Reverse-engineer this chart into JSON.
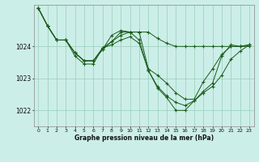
{
  "bg_color": "#cceee8",
  "grid_color": "#99ccbb",
  "line_color": "#1a5c1a",
  "xlabel": "Graphe pression niveau de la mer (hPa)",
  "xlim_min": -0.5,
  "xlim_max": 23.5,
  "ylim_min": 1021.5,
  "ylim_max": 1025.3,
  "yticks": [
    1022,
    1023,
    1024
  ],
  "xticks": [
    0,
    1,
    2,
    3,
    4,
    5,
    6,
    7,
    8,
    9,
    10,
    11,
    12,
    13,
    14,
    15,
    16,
    17,
    18,
    19,
    20,
    21,
    22,
    23
  ],
  "series": [
    [
      1025.2,
      1024.65,
      1024.2,
      1024.2,
      1023.8,
      1023.55,
      1023.55,
      1023.9,
      1024.15,
      1024.35,
      1024.45,
      1024.45,
      1024.45,
      1024.25,
      1024.1,
      1024.0,
      1024.0,
      1024.0,
      1024.0,
      1024.0,
      1024.0,
      1024.0,
      1024.0,
      1024.0
    ],
    [
      1025.2,
      1024.65,
      1024.2,
      1024.2,
      1023.8,
      1023.55,
      1023.55,
      1023.9,
      1024.35,
      1024.5,
      1024.45,
      1024.45,
      1023.3,
      1023.1,
      1022.85,
      1022.55,
      1022.35,
      1022.35,
      1022.9,
      1023.3,
      1023.75,
      1024.0,
      1024.0,
      1024.05
    ],
    [
      1025.2,
      1024.65,
      1024.2,
      1024.2,
      1023.7,
      1023.45,
      1023.45,
      1023.95,
      1024.05,
      1024.2,
      1024.3,
      1024.1,
      1023.25,
      1022.7,
      1022.4,
      1022.0,
      1022.0,
      1022.3,
      1022.55,
      1022.75,
      1023.1,
      1023.6,
      1023.85,
      1024.05
    ],
    [
      1025.2,
      1024.65,
      1024.2,
      1024.2,
      1023.8,
      1023.55,
      1023.55,
      1023.95,
      1024.15,
      1024.45,
      1024.45,
      1024.2,
      1023.25,
      1022.75,
      1022.45,
      1022.25,
      1022.15,
      1022.3,
      1022.6,
      1022.85,
      1023.7,
      1024.05,
      1024.0,
      1024.05
    ]
  ]
}
